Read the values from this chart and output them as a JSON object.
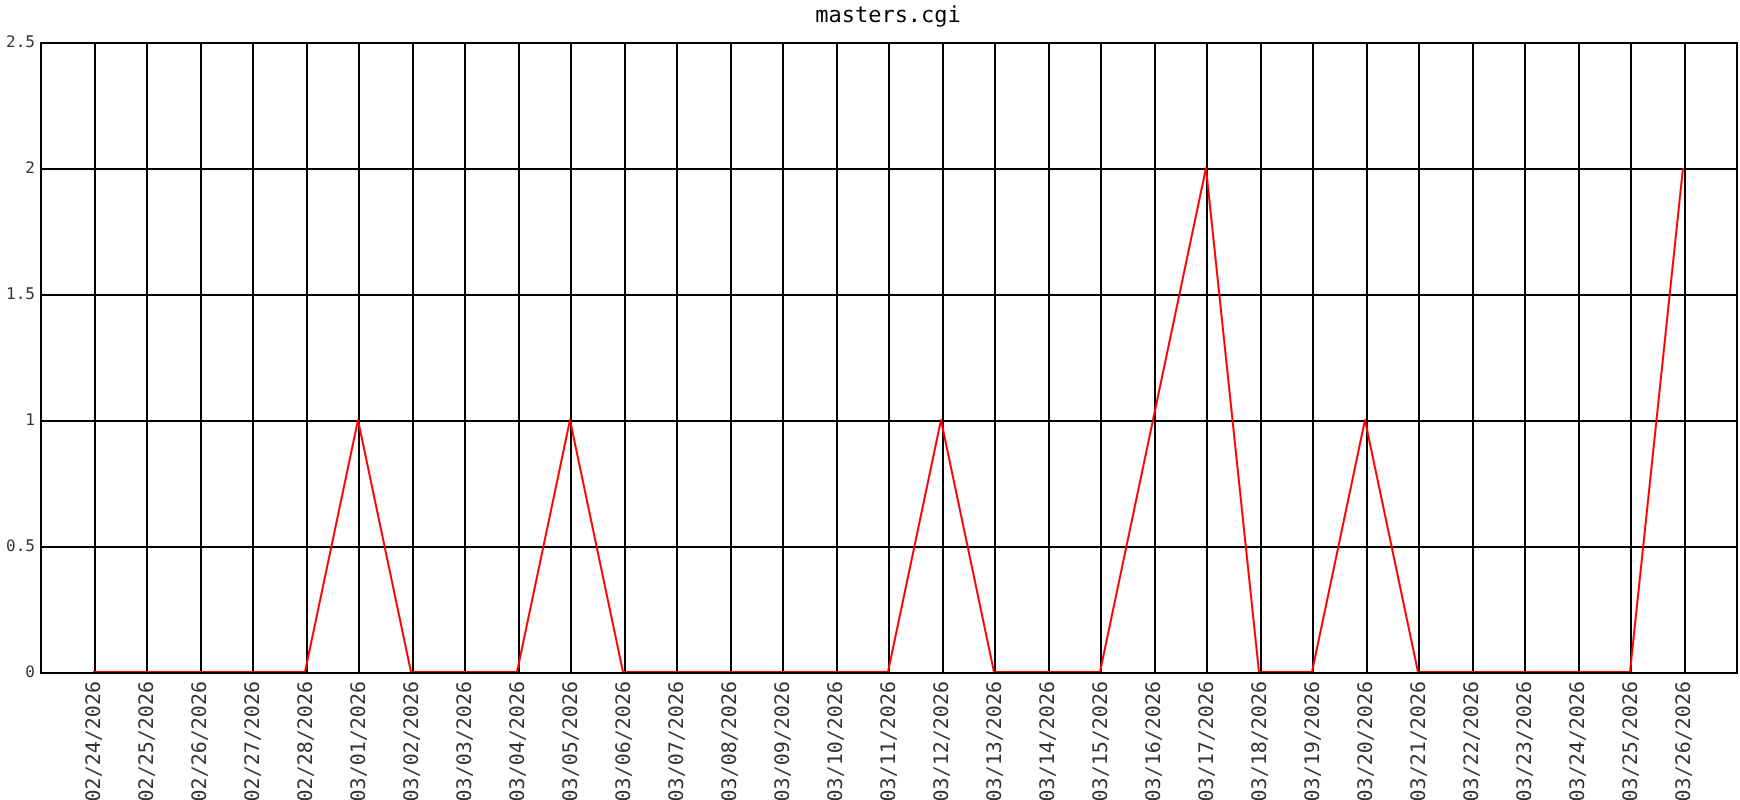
{
  "chart_data": {
    "type": "line",
    "title": "masters.cgi",
    "categories": [
      "02/24/2026",
      "02/25/2026",
      "02/26/2026",
      "02/27/2026",
      "02/28/2026",
      "03/01/2026",
      "03/02/2026",
      "03/03/2026",
      "03/04/2026",
      "03/05/2026",
      "03/06/2026",
      "03/07/2026",
      "03/08/2026",
      "03/09/2026",
      "03/10/2026",
      "03/11/2026",
      "03/12/2026",
      "03/13/2026",
      "03/14/2026",
      "03/15/2026",
      "03/16/2026",
      "03/17/2026",
      "03/18/2026",
      "03/19/2026",
      "03/20/2026",
      "03/21/2026",
      "03/22/2026",
      "03/23/2026",
      "03/24/2026",
      "03/25/2026",
      "03/26/2026"
    ],
    "series": [
      {
        "color": "#ff0000",
        "values": [
          0,
          0,
          0,
          0,
          0,
          1,
          0,
          0,
          0,
          1,
          0,
          0,
          0,
          0,
          0,
          0,
          1,
          0,
          0,
          0,
          1,
          2,
          0,
          0,
          1,
          0,
          0,
          0,
          0,
          0,
          2
        ]
      }
    ],
    "ylim": [
      0,
      2.5
    ],
    "yticks": [
      0,
      0.5,
      1,
      1.5,
      2,
      2.5
    ],
    "grid": true
  }
}
